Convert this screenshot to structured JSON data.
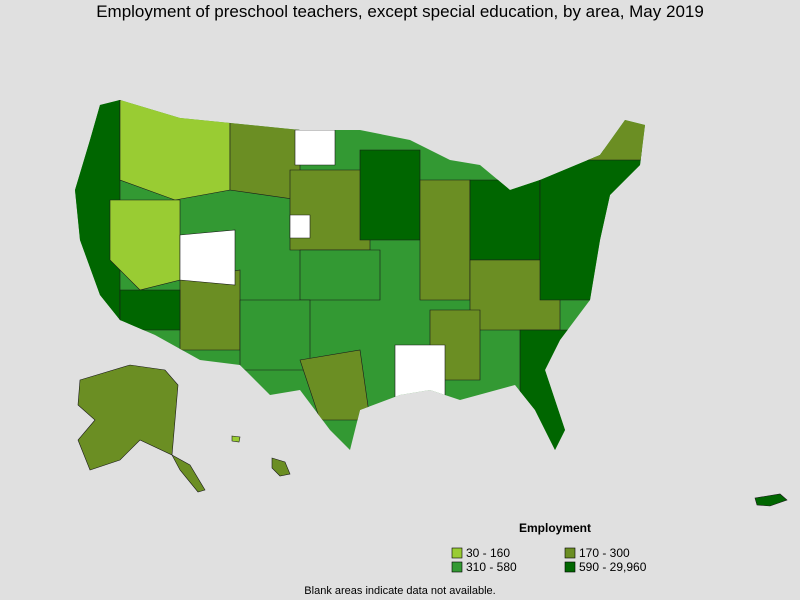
{
  "header": {
    "title": "Employment of preschool teachers, except special education, by area, May 2019"
  },
  "legend": {
    "title": "Employment",
    "items": [
      {
        "label": "30 - 160",
        "color": "#99cc33"
      },
      {
        "label": "170 - 300",
        "color": "#6b8e23"
      },
      {
        "label": "310 - 580",
        "color": "#339933"
      },
      {
        "label": "590 - 29,960",
        "color": "#006600"
      }
    ]
  },
  "footnote": "Blank areas indicate data not available."
}
